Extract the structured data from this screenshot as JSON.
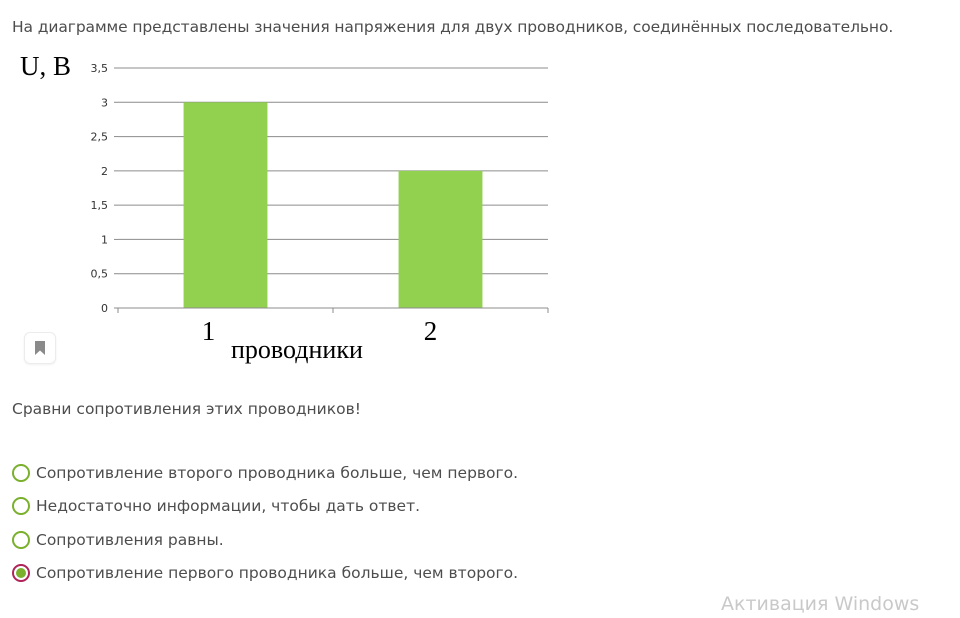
{
  "intro_text": "На диаграмме представлены значения напряжения для двух проводников, соединённых последовательно.",
  "chart_data": {
    "type": "bar",
    "categories": [
      "1",
      "2"
    ],
    "values": [
      3,
      2
    ],
    "ylabel": "U, В",
    "xlabel": "проводники",
    "ylim": [
      0,
      3.5
    ],
    "yticks": [
      "0",
      "0,5",
      "1",
      "1,5",
      "2",
      "2,5",
      "3",
      "3,5"
    ],
    "grid": true,
    "bar_color": "#92d050"
  },
  "question_text": "Сравни сопротивления этих проводников!",
  "options": [
    {
      "label": "Сопротивление второго проводника больше, чем первого.",
      "selected": false
    },
    {
      "label": "Недостаточно информации, чтобы дать ответ.",
      "selected": false
    },
    {
      "label": "Сопротивления равны.",
      "selected": false
    },
    {
      "label": "Сопротивление первого проводника больше, чем второго.",
      "selected": true
    }
  ],
  "bookmark_icon": "bookmark-icon",
  "watermark_text": "Активация Windows",
  "colors": {
    "accent_green": "#7ab02c",
    "selected_ring": "#b0245a",
    "bar": "#92d050"
  }
}
